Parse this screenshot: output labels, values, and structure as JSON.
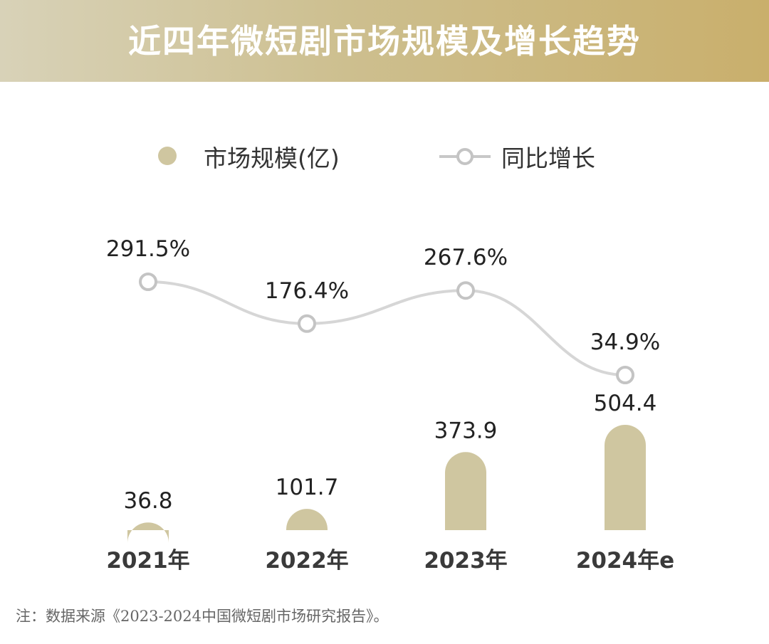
{
  "header": {
    "title": "近四年微短剧市场规模及增长趋势"
  },
  "legend": {
    "bar_label": "市场规模(亿)",
    "line_label": "同比增长"
  },
  "colors": {
    "bar": "#cfc6a0",
    "line": "#d6d6d6",
    "marker_stroke": "#c4c4c4",
    "label_text": "#222222",
    "axis_text": "#3a3a3a"
  },
  "chart_data": {
    "type": "bar",
    "categories": [
      "2021年",
      "2022年",
      "2023年",
      "2024年e"
    ],
    "series": [
      {
        "name": "市场规模(亿)",
        "type": "bar",
        "values": [
          36.8,
          101.7,
          373.9,
          504.4
        ],
        "labels": [
          "36.8",
          "101.7",
          "373.9",
          "504.4"
        ]
      },
      {
        "name": "同比增长",
        "type": "line",
        "values": [
          291.5,
          176.4,
          267.6,
          34.9
        ],
        "labels": [
          "291.5%",
          "176.4%",
          "267.6%",
          "34.9%"
        ]
      }
    ],
    "title": "近四年微短剧市场规模及增长趋势",
    "legend_position": "top",
    "grid": false
  },
  "footnote": "注：数据来源《2023-2024中国微短剧市场研究报告》。"
}
